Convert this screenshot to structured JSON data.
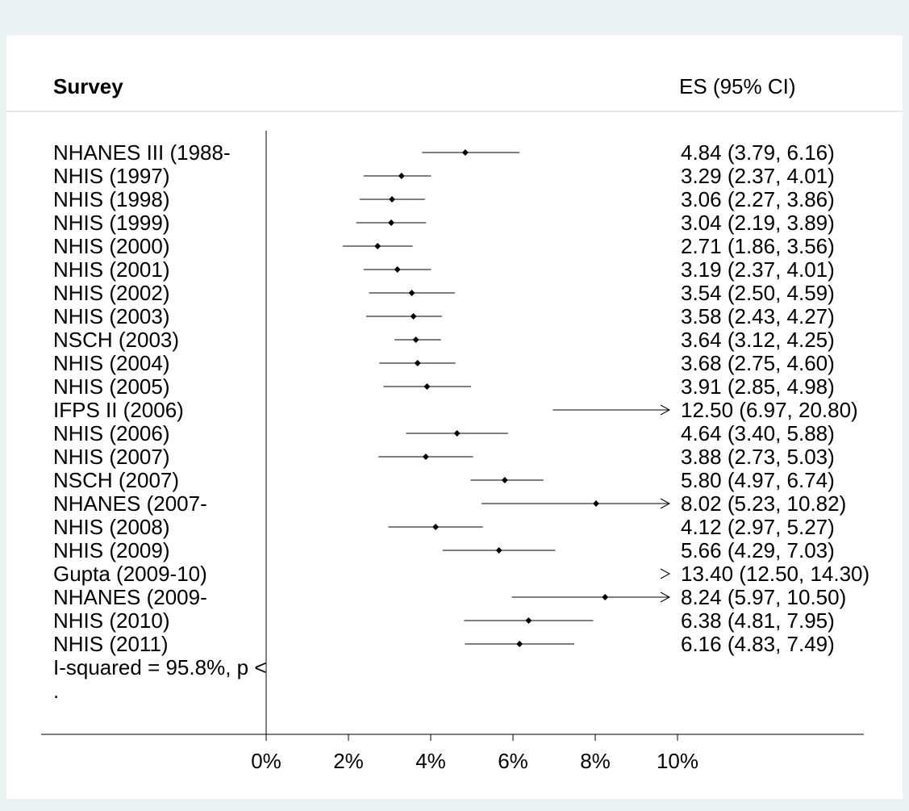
{
  "chart_data": {
    "type": "forest",
    "header_left": "Survey",
    "header_right": "ES (95% CI)",
    "xlim": [
      0,
      10
    ],
    "x_ticks": [
      "0%",
      "2%",
      "4%",
      "6%",
      "8%",
      "10%"
    ],
    "x_tick_values": [
      0,
      2,
      4,
      6,
      8,
      10
    ],
    "studies": [
      {
        "label": "NHANES III (1988-",
        "es": 4.84,
        "lo": 3.79,
        "hi": 6.16,
        "ci_text": "4.84 (3.79, 6.16)"
      },
      {
        "label": "NHIS (1997)",
        "es": 3.29,
        "lo": 2.37,
        "hi": 4.01,
        "ci_text": "3.29 (2.37, 4.01)"
      },
      {
        "label": "NHIS (1998)",
        "es": 3.06,
        "lo": 2.27,
        "hi": 3.86,
        "ci_text": "3.06 (2.27, 3.86)"
      },
      {
        "label": "NHIS (1999)",
        "es": 3.04,
        "lo": 2.19,
        "hi": 3.89,
        "ci_text": "3.04 (2.19, 3.89)"
      },
      {
        "label": "NHIS (2000)",
        "es": 2.71,
        "lo": 1.86,
        "hi": 3.56,
        "ci_text": "2.71 (1.86, 3.56)"
      },
      {
        "label": "NHIS (2001)",
        "es": 3.19,
        "lo": 2.37,
        "hi": 4.01,
        "ci_text": "3.19 (2.37, 4.01)"
      },
      {
        "label": "NHIS (2002)",
        "es": 3.54,
        "lo": 2.5,
        "hi": 4.59,
        "ci_text": "3.54 (2.50, 4.59)"
      },
      {
        "label": "NHIS (2003)",
        "es": 3.58,
        "lo": 2.43,
        "hi": 4.27,
        "ci_text": "3.58 (2.43, 4.27)"
      },
      {
        "label": "NSCH (2003)",
        "es": 3.64,
        "lo": 3.12,
        "hi": 4.25,
        "ci_text": "3.64 (3.12, 4.25)"
      },
      {
        "label": "NHIS (2004)",
        "es": 3.68,
        "lo": 2.75,
        "hi": 4.6,
        "ci_text": "3.68 (2.75, 4.60)"
      },
      {
        "label": "NHIS (2005)",
        "es": 3.91,
        "lo": 2.85,
        "hi": 4.98,
        "ci_text": "3.91 (2.85, 4.98)"
      },
      {
        "label": "IFPS II (2006)",
        "es": 12.5,
        "lo": 6.97,
        "hi": 20.8,
        "ci_text": "12.50 (6.97, 20.80)"
      },
      {
        "label": "NHIS (2006)",
        "es": 4.64,
        "lo": 3.4,
        "hi": 5.88,
        "ci_text": "4.64 (3.40, 5.88)"
      },
      {
        "label": "NHIS (2007)",
        "es": 3.88,
        "lo": 2.73,
        "hi": 5.03,
        "ci_text": "3.88 (2.73, 5.03)"
      },
      {
        "label": "NSCH (2007)",
        "es": 5.8,
        "lo": 4.97,
        "hi": 6.74,
        "ci_text": "5.80 (4.97, 6.74)"
      },
      {
        "label": "NHANES (2007-",
        "es": 8.02,
        "lo": 5.23,
        "hi": 10.82,
        "ci_text": "8.02 (5.23, 10.82)"
      },
      {
        "label": "NHIS (2008)",
        "es": 4.12,
        "lo": 2.97,
        "hi": 5.27,
        "ci_text": "4.12 (2.97, 5.27)"
      },
      {
        "label": "NHIS (2009)",
        "es": 5.66,
        "lo": 4.29,
        "hi": 7.03,
        "ci_text": "5.66 (4.29, 7.03)"
      },
      {
        "label": "Gupta  (2009-10)",
        "es": 13.4,
        "lo": 12.5,
        "hi": 14.3,
        "ci_text": "13.40 (12.50, 14.30)"
      },
      {
        "label": "NHANES (2009-",
        "es": 8.24,
        "lo": 5.97,
        "hi": 10.5,
        "ci_text": "8.24 (5.97, 10.50)"
      },
      {
        "label": "NHIS (2010)",
        "es": 6.38,
        "lo": 4.81,
        "hi": 7.95,
        "ci_text": "6.38 (4.81, 7.95)"
      },
      {
        "label": "NHIS (2011)",
        "es": 6.16,
        "lo": 4.83,
        "hi": 7.49,
        "ci_text": "6.16 (4.83, 7.49)"
      }
    ],
    "footer_lines": [
      "I-squared = 95.8%, p <",
      "."
    ],
    "grid": false
  }
}
